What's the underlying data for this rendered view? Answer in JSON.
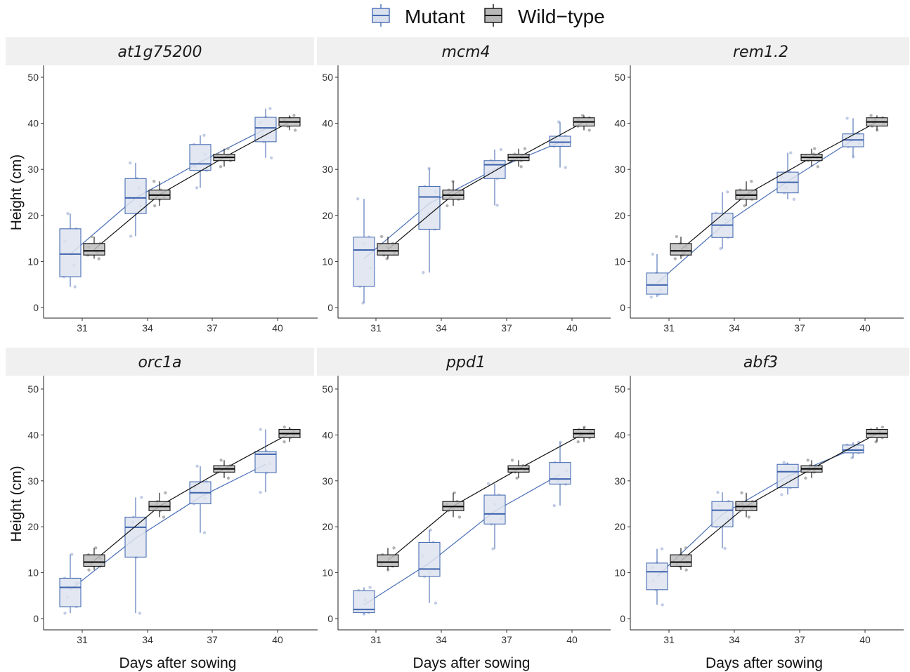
{
  "legend": {
    "entries": [
      {
        "label": "Mutant",
        "color": "#4a6fb5",
        "fill": "#d9e0ee"
      },
      {
        "label": "Wild−type",
        "color": "#111111",
        "fill": "#b8b8b8"
      }
    ]
  },
  "axes": {
    "ylabel": "Height (cm)",
    "xlabel": "Days after sowing",
    "y_ticks": [
      "0",
      "10",
      "20",
      "30",
      "40",
      "50"
    ],
    "x_ticks": [
      "31",
      "34",
      "37",
      "40"
    ]
  },
  "chart_data": [
    {
      "type": "box",
      "title": "at1g75200",
      "ylim": [
        0,
        50
      ],
      "grid": false,
      "categories": [
        "31",
        "34",
        "37",
        "40"
      ],
      "series": [
        {
          "name": "Mutant",
          "boxes": [
            {
              "min": 4.5,
              "q1": 6.7,
              "median": 11.6,
              "q3": 17.1,
              "max": 20.4,
              "mean": 11.6
            },
            {
              "min": 15.5,
              "q1": 20.4,
              "median": 23.8,
              "q3": 28.0,
              "max": 31.4,
              "mean": 23.8
            },
            {
              "min": 26.0,
              "q1": 29.8,
              "median": 31.2,
              "q3": 35.4,
              "max": 37.4,
              "mean": 31.6
            },
            {
              "min": 32.5,
              "q1": 36.0,
              "median": 39.0,
              "q3": 41.3,
              "max": 43.2,
              "mean": 38.8
            }
          ]
        },
        {
          "name": "Wild−type",
          "boxes": [
            {
              "min": 10.6,
              "q1": 11.4,
              "median": 12.3,
              "q3": 13.9,
              "max": 15.4,
              "mean": 12.6
            },
            {
              "min": 22.1,
              "q1": 23.5,
              "median": 24.4,
              "q3": 25.5,
              "max": 27.4,
              "mean": 24.5
            },
            {
              "min": 30.6,
              "q1": 31.9,
              "median": 32.6,
              "q3": 33.3,
              "max": 34.5,
              "mean": 32.6
            },
            {
              "min": 38.5,
              "q1": 39.4,
              "median": 40.3,
              "q3": 41.2,
              "max": 41.7,
              "mean": 40.3
            }
          ]
        }
      ]
    },
    {
      "type": "box",
      "title": "mcm4",
      "ylim": [
        0,
        50
      ],
      "grid": false,
      "categories": [
        "31",
        "34",
        "37",
        "40"
      ],
      "series": [
        {
          "name": "Mutant",
          "boxes": [
            {
              "min": 1.0,
              "q1": 4.6,
              "median": 12.5,
              "q3": 15.3,
              "max": 23.6,
              "mean": 10.6
            },
            {
              "min": 7.6,
              "q1": 17.0,
              "median": 24.0,
              "q3": 26.3,
              "max": 30.2,
              "mean": 22.6
            },
            {
              "min": 22.2,
              "q1": 28.0,
              "median": 31.0,
              "q3": 31.9,
              "max": 34.3,
              "mean": 30.0
            },
            {
              "min": 30.4,
              "q1": 35.0,
              "median": 35.9,
              "q3": 37.2,
              "max": 40.3,
              "mean": 35.9
            }
          ]
        },
        {
          "name": "Wild−type",
          "boxes": [
            {
              "min": 10.6,
              "q1": 11.4,
              "median": 12.3,
              "q3": 13.9,
              "max": 15.4,
              "mean": 12.6
            },
            {
              "min": 22.1,
              "q1": 23.5,
              "median": 24.4,
              "q3": 25.5,
              "max": 27.4,
              "mean": 24.5
            },
            {
              "min": 30.6,
              "q1": 31.9,
              "median": 32.6,
              "q3": 33.3,
              "max": 34.5,
              "mean": 32.6
            },
            {
              "min": 38.5,
              "q1": 39.4,
              "median": 40.3,
              "q3": 41.2,
              "max": 41.7,
              "mean": 40.3
            }
          ]
        }
      ]
    },
    {
      "type": "box",
      "title": "rem1.2",
      "ylim": [
        0,
        50
      ],
      "grid": false,
      "categories": [
        "31",
        "34",
        "37",
        "40"
      ],
      "series": [
        {
          "name": "Mutant",
          "boxes": [
            {
              "min": 2.3,
              "q1": 2.9,
              "median": 4.9,
              "q3": 7.5,
              "max": 11.6,
              "mean": 5.3
            },
            {
              "min": 12.8,
              "q1": 15.2,
              "median": 17.9,
              "q3": 20.5,
              "max": 25.1,
              "mean": 17.8
            },
            {
              "min": 23.5,
              "q1": 24.9,
              "median": 27.2,
              "q3": 29.4,
              "max": 33.6,
              "mean": 27.4
            },
            {
              "min": 32.7,
              "q1": 34.9,
              "median": 36.4,
              "q3": 37.7,
              "max": 41.1,
              "mean": 36.4
            }
          ]
        },
        {
          "name": "Wild−type",
          "boxes": [
            {
              "min": 10.6,
              "q1": 11.4,
              "median": 12.3,
              "q3": 13.9,
              "max": 15.4,
              "mean": 12.6
            },
            {
              "min": 22.1,
              "q1": 23.5,
              "median": 24.4,
              "q3": 25.5,
              "max": 27.4,
              "mean": 24.5
            },
            {
              "min": 30.6,
              "q1": 31.9,
              "median": 32.6,
              "q3": 33.3,
              "max": 34.5,
              "mean": 32.6
            },
            {
              "min": 38.5,
              "q1": 39.4,
              "median": 40.3,
              "q3": 41.2,
              "max": 41.7,
              "mean": 40.3
            }
          ]
        }
      ]
    },
    {
      "type": "box",
      "title": "orc1a",
      "ylim": [
        0,
        50
      ],
      "grid": false,
      "categories": [
        "31",
        "34",
        "37",
        "40"
      ],
      "series": [
        {
          "name": "Mutant",
          "boxes": [
            {
              "min": 1.2,
              "q1": 2.6,
              "median": 6.8,
              "q3": 8.8,
              "max": 14.0,
              "mean": 6.3
            },
            {
              "min": 1.2,
              "q1": 13.4,
              "median": 19.9,
              "q3": 22.1,
              "max": 26.4,
              "mean": 17.5
            },
            {
              "min": 18.7,
              "q1": 25.0,
              "median": 27.4,
              "q3": 29.8,
              "max": 33.2,
              "mean": 26.5
            },
            {
              "min": 27.5,
              "q1": 31.8,
              "median": 35.8,
              "q3": 36.4,
              "max": 41.2,
              "mean": 33.6
            }
          ]
        },
        {
          "name": "Wild−type",
          "boxes": [
            {
              "min": 10.6,
              "q1": 11.4,
              "median": 12.3,
              "q3": 13.9,
              "max": 15.4,
              "mean": 12.6
            },
            {
              "min": 22.1,
              "q1": 23.5,
              "median": 24.4,
              "q3": 25.5,
              "max": 27.4,
              "mean": 24.5
            },
            {
              "min": 30.6,
              "q1": 31.9,
              "median": 32.6,
              "q3": 33.3,
              "max": 34.5,
              "mean": 32.6
            },
            {
              "min": 38.5,
              "q1": 39.4,
              "median": 40.3,
              "q3": 41.2,
              "max": 41.7,
              "mean": 40.3
            }
          ]
        }
      ]
    },
    {
      "type": "box",
      "title": "ppd1",
      "ylim": [
        0,
        50
      ],
      "grid": false,
      "categories": [
        "31",
        "34",
        "37",
        "40"
      ],
      "series": [
        {
          "name": "Mutant",
          "boxes": [
            {
              "min": 1.0,
              "q1": 1.3,
              "median": 2.0,
              "q3": 6.1,
              "max": 6.8,
              "mean": 3.0
            },
            {
              "min": 3.4,
              "q1": 9.2,
              "median": 10.8,
              "q3": 16.6,
              "max": 19.3,
              "mean": 12.1
            },
            {
              "min": 15.2,
              "q1": 20.6,
              "median": 22.8,
              "q3": 26.9,
              "max": 29.4,
              "mean": 23.4
            },
            {
              "min": 24.6,
              "q1": 29.3,
              "median": 30.4,
              "q3": 34.0,
              "max": 38.4,
              "mean": 31.4
            }
          ]
        },
        {
          "name": "Wild−type",
          "boxes": [
            {
              "min": 10.6,
              "q1": 11.4,
              "median": 12.3,
              "q3": 13.9,
              "max": 15.4,
              "mean": 12.6
            },
            {
              "min": 22.1,
              "q1": 23.5,
              "median": 24.4,
              "q3": 25.5,
              "max": 27.4,
              "mean": 24.5
            },
            {
              "min": 30.6,
              "q1": 31.9,
              "median": 32.6,
              "q3": 33.3,
              "max": 34.5,
              "mean": 32.6
            },
            {
              "min": 38.5,
              "q1": 39.4,
              "median": 40.3,
              "q3": 41.2,
              "max": 41.7,
              "mean": 40.3
            }
          ]
        }
      ]
    },
    {
      "type": "box",
      "title": "abf3",
      "ylim": [
        0,
        50
      ],
      "grid": false,
      "categories": [
        "31",
        "34",
        "37",
        "40"
      ],
      "series": [
        {
          "name": "Mutant",
          "boxes": [
            {
              "min": 3.0,
              "q1": 6.3,
              "median": 10.2,
              "q3": 12.1,
              "max": 15.2,
              "mean": 9.2
            },
            {
              "min": 15.3,
              "q1": 20.0,
              "median": 23.6,
              "q3": 25.5,
              "max": 27.5,
              "mean": 22.7
            },
            {
              "min": 27.0,
              "q1": 28.5,
              "median": 32.0,
              "q3": 33.6,
              "max": 34.0,
              "mean": 31.0
            },
            {
              "min": 35.0,
              "q1": 36.1,
              "median": 36.7,
              "q3": 37.8,
              "max": 38.4,
              "mean": 36.9
            }
          ]
        },
        {
          "name": "Wild−type",
          "boxes": [
            {
              "min": 10.6,
              "q1": 11.4,
              "median": 12.3,
              "q3": 13.9,
              "max": 15.4,
              "mean": 12.6
            },
            {
              "min": 22.1,
              "q1": 23.5,
              "median": 24.4,
              "q3": 25.5,
              "max": 27.4,
              "mean": 24.5
            },
            {
              "min": 30.6,
              "q1": 31.9,
              "median": 32.6,
              "q3": 33.3,
              "max": 34.5,
              "mean": 32.6
            },
            {
              "min": 38.5,
              "q1": 39.4,
              "median": 40.3,
              "q3": 41.2,
              "max": 41.7,
              "mean": 40.3
            }
          ]
        }
      ]
    }
  ]
}
